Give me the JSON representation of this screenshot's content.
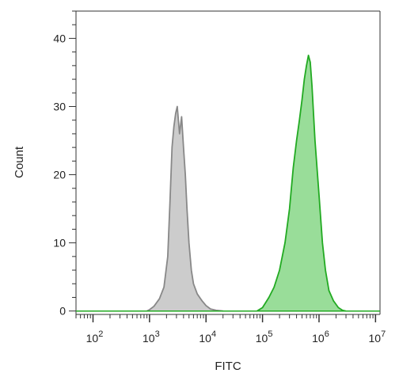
{
  "chart_data": {
    "type": "area",
    "title": "",
    "xlabel": "FITC",
    "ylabel": "Count",
    "x_scale": "log",
    "xlim": [
      50,
      12000000
    ],
    "ylim": [
      -0.5,
      44
    ],
    "x_ticks": [
      {
        "value": 100,
        "base": "10",
        "exp": "2"
      },
      {
        "value": 1000,
        "base": "10",
        "exp": "3"
      },
      {
        "value": 10000,
        "base": "10",
        "exp": "4"
      },
      {
        "value": 100000,
        "base": "10",
        "exp": "5"
      },
      {
        "value": 1000000,
        "base": "10",
        "exp": "6"
      },
      {
        "value": 10000000,
        "base": "10",
        "exp": "7"
      }
    ],
    "y_ticks": [
      0,
      10,
      20,
      30,
      40
    ],
    "grid": false,
    "series": [
      {
        "color": "#888888",
        "fill": "#cccccc",
        "x": [
          900,
          1000,
          1200,
          1500,
          1800,
          2100,
          2300,
          2500,
          2700,
          2900,
          3100,
          3400,
          3700,
          4000,
          4300,
          4600,
          5000,
          5500,
          6000,
          7000,
          8500,
          10000,
          12000,
          15000,
          20000
        ],
        "y": [
          0,
          0.2,
          0.7,
          1.8,
          3.5,
          8,
          16,
          24,
          27,
          29,
          30,
          26,
          28.5,
          24,
          20,
          15,
          10,
          6,
          4,
          2.5,
          1.5,
          0.8,
          0.3,
          0.1,
          0
        ]
      },
      {
        "color": "#22aa22",
        "fill": "#99dd99",
        "x": [
          80000,
          100000,
          130000,
          160000,
          200000,
          250000,
          300000,
          350000,
          400000,
          450000,
          500000,
          550000,
          600000,
          650000,
          700000,
          750000,
          850000,
          1000000,
          1150000,
          1300000,
          1500000,
          1800000,
          2200000,
          2600000,
          3000000
        ],
        "y": [
          0,
          0.5,
          2,
          3.5,
          6,
          10,
          15,
          21,
          25,
          28,
          31,
          34,
          36,
          37.5,
          36.5,
          33,
          25,
          17,
          10,
          6,
          3,
          1.5,
          0.5,
          0.1,
          0
        ]
      }
    ]
  }
}
